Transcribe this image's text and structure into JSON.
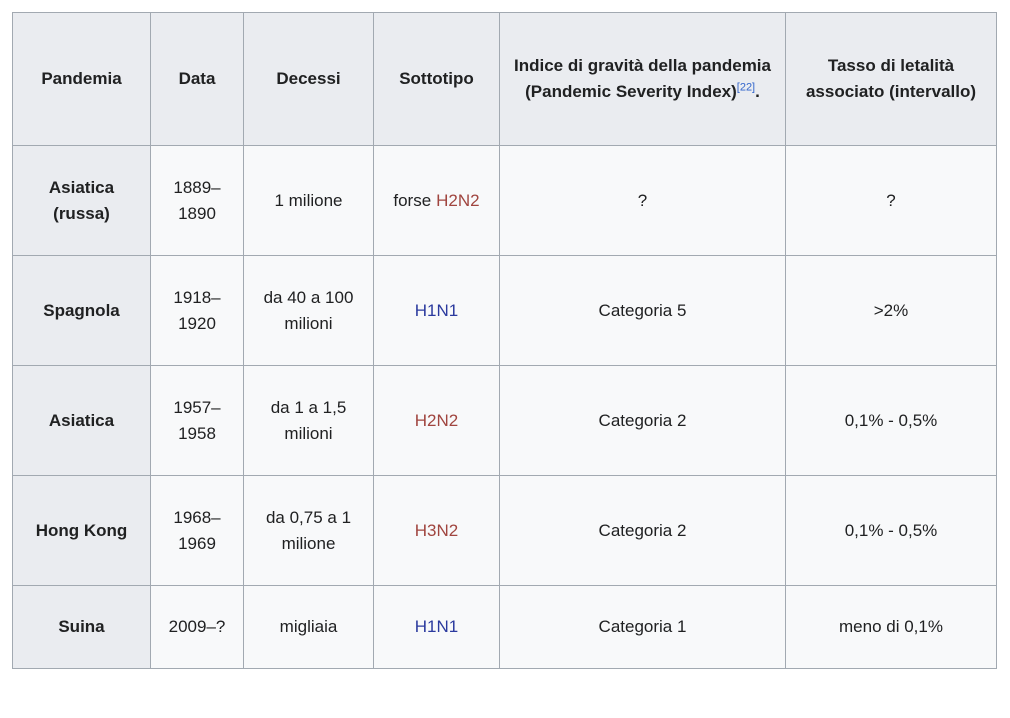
{
  "table": {
    "headers": [
      {
        "text": "Pandemia"
      },
      {
        "text": "Data"
      },
      {
        "text": "Decessi"
      },
      {
        "text": "Sottotipo"
      },
      {
        "text": "Indice di gravità della pandemia (Pandemic Severity Index)",
        "note": "[22]",
        "after": "."
      },
      {
        "text": "Tasso di letalità associato (intervallo)"
      }
    ],
    "rows": [
      {
        "pandemic": [
          "Asiatica",
          "(russa)"
        ],
        "date": [
          "1889–",
          "1890"
        ],
        "deaths": [
          "1 milione"
        ],
        "subtype": {
          "prefix": "forse",
          "name": "H2N2",
          "color": "#a0453f"
        },
        "severity": "?",
        "rate": "?"
      },
      {
        "pandemic": [
          "Spagnola"
        ],
        "date": [
          "1918–",
          "1920"
        ],
        "deaths": [
          "da 40 a 100",
          "milioni"
        ],
        "subtype": {
          "name": "H1N1",
          "color": "#2b3a9e"
        },
        "severity": "Categoria 5",
        "rate": ">2%"
      },
      {
        "pandemic": [
          "Asiatica"
        ],
        "date": [
          "1957–",
          "1958"
        ],
        "deaths": [
          "da 1 a 1,5",
          "milioni"
        ],
        "subtype": {
          "name": "H2N2",
          "color": "#a0453f"
        },
        "severity": "Categoria 2",
        "rate": "0,1% - 0,5%"
      },
      {
        "pandemic": [
          "Hong Kong"
        ],
        "date": [
          "1968–",
          "1969"
        ],
        "deaths": [
          "da 0,75 a 1",
          "milione"
        ],
        "subtype": {
          "name": "H3N2",
          "color": "#a0453f"
        },
        "severity": "Categoria 2",
        "rate": "0,1% - 0,5%"
      },
      {
        "pandemic": [
          "Suina"
        ],
        "date": [
          "2009–?"
        ],
        "deaths": [
          "migliaia"
        ],
        "subtype": {
          "name": "H1N1",
          "color": "#2b3a9e"
        },
        "severity": "Categoria 1",
        "rate": "meno di 0,1%"
      }
    ]
  }
}
